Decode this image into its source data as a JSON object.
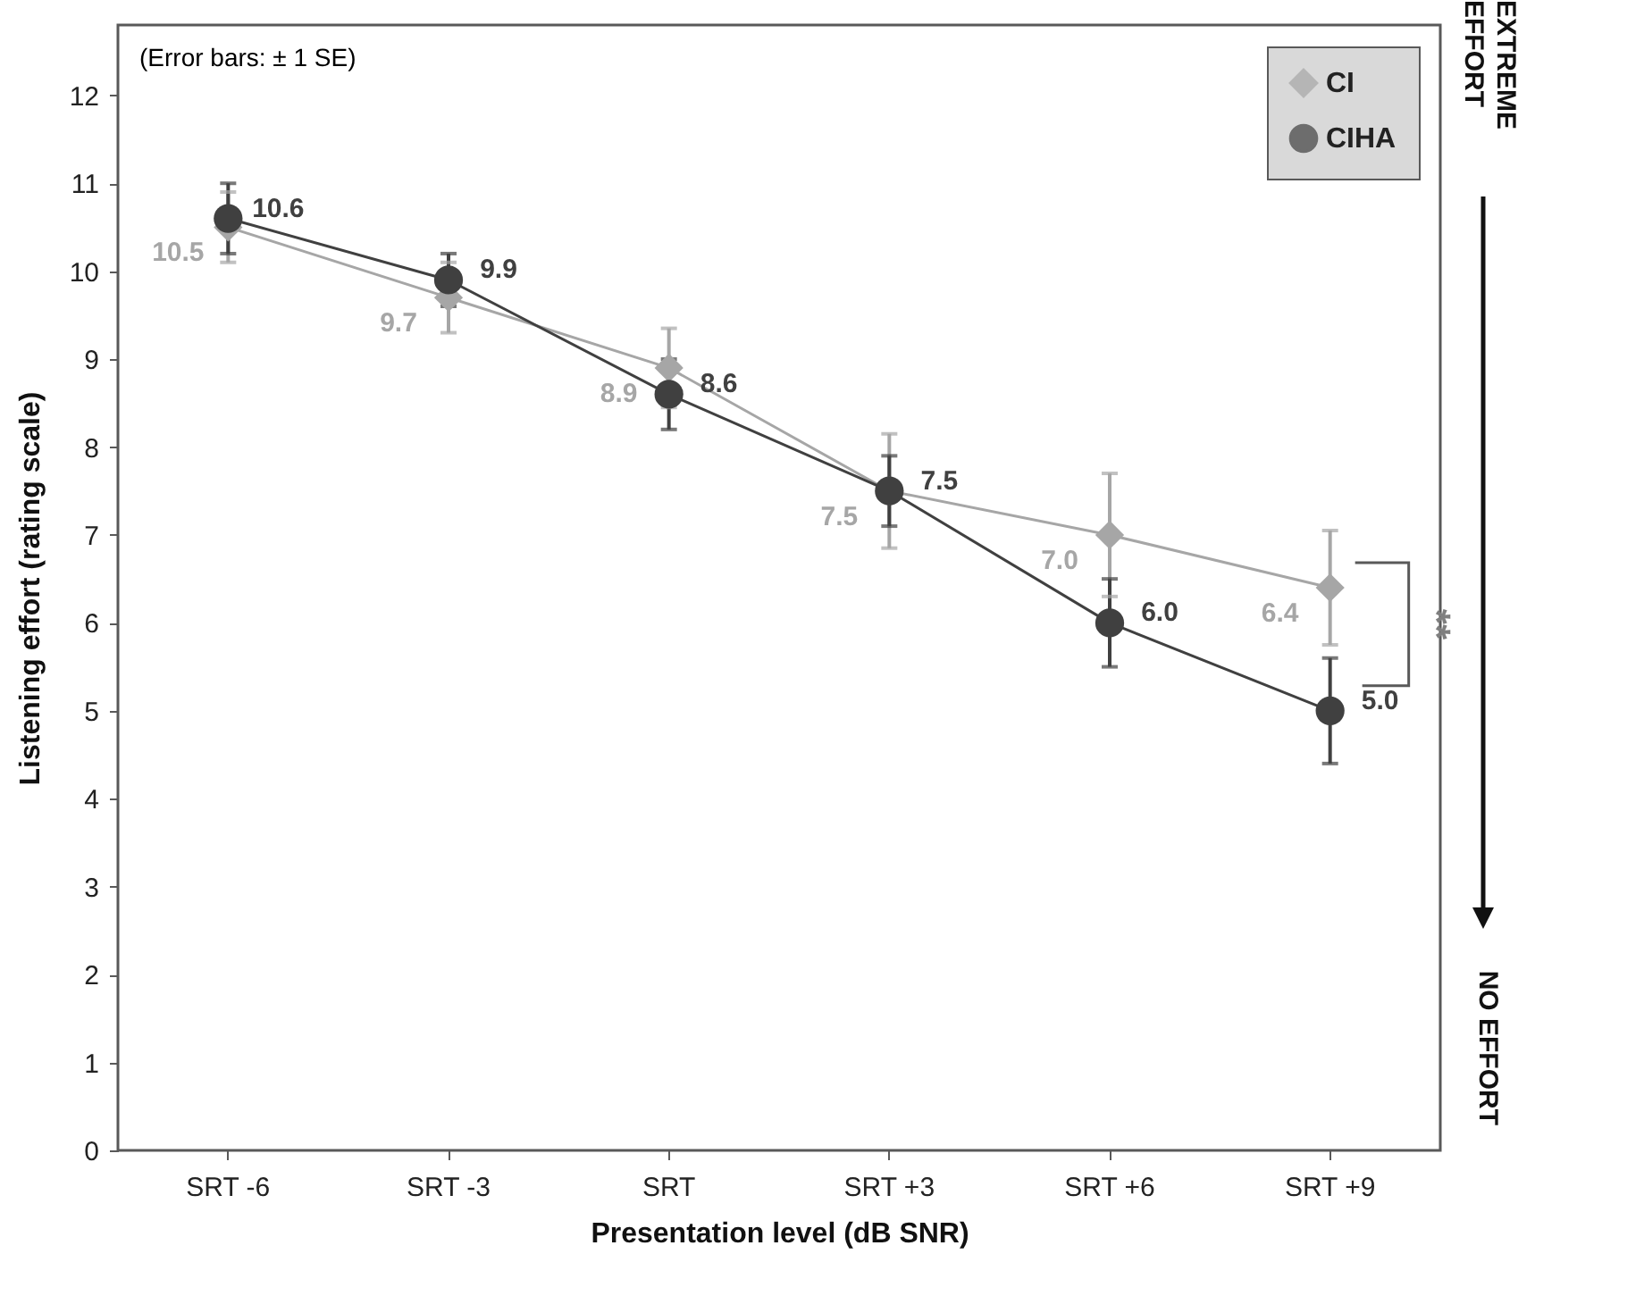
{
  "chart_data": {
    "type": "line",
    "xlabel": "Presentation level (dB SNR)",
    "ylabel": "Listening effort (rating scale)",
    "categories": [
      "SRT -6",
      "SRT -3",
      "SRT",
      "SRT +3",
      "SRT +6",
      "SRT +9"
    ],
    "series": [
      {
        "name": "CI",
        "color": "#a6a6a6",
        "marker": "diamond",
        "values": [
          10.5,
          9.7,
          8.9,
          7.5,
          7.0,
          6.4
        ],
        "value_labels": [
          "10.5",
          "9.7",
          "8.9",
          "7.5",
          "7.0",
          "6.4"
        ],
        "errors": [
          0.4,
          0.4,
          0.45,
          0.65,
          0.7,
          0.65
        ]
      },
      {
        "name": "CIHA",
        "color": "#404040",
        "marker": "circle",
        "values": [
          10.6,
          9.9,
          8.6,
          7.5,
          6.0,
          5.0
        ],
        "value_labels": [
          "10.6",
          "9.9",
          "8.6",
          "7.5",
          "6.0",
          "5.0"
        ],
        "errors": [
          0.4,
          0.3,
          0.4,
          0.4,
          0.5,
          0.6
        ]
      }
    ],
    "ylim": [
      0,
      12.8
    ],
    "yticks": [
      0,
      1,
      2,
      3,
      4,
      5,
      6,
      7,
      8,
      9,
      10,
      11,
      12
    ],
    "legend": "top right",
    "annotations": [
      "(Error bars: ± 1 SE)",
      "**",
      "EXTREME EFFORT",
      "NO EFFORT"
    ]
  }
}
